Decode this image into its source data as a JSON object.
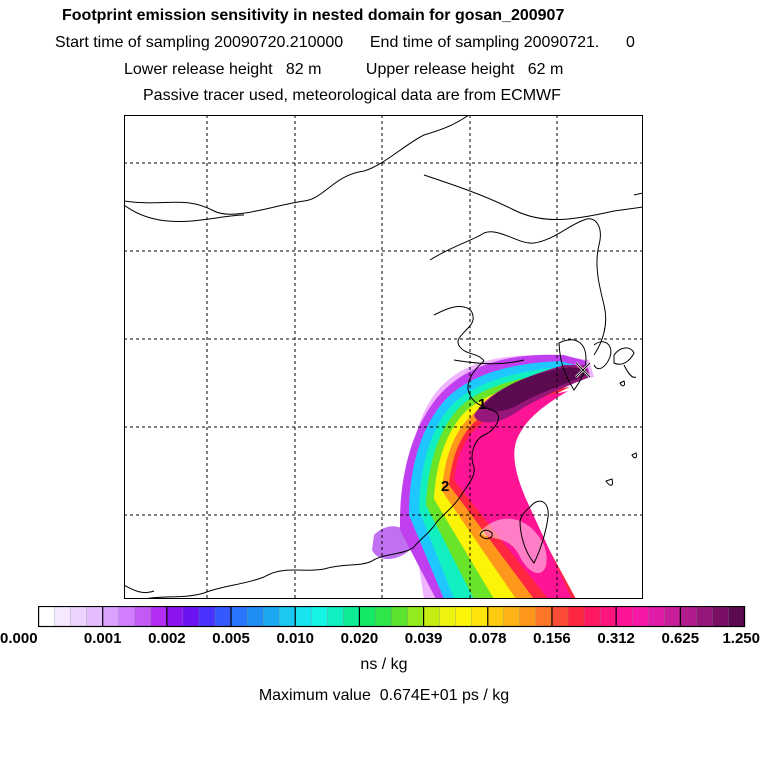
{
  "header": {
    "title": "Footprint emission sensitivity in nested domain for gosan_200907",
    "sampling_line": "Start time of sampling 20090720.210000      End time of sampling 20090721.      0",
    "release_line": "Lower release height   82 m          Upper release height   62 m",
    "tracer_line": "Passive tracer used, meteorological data are from ECMWF"
  },
  "map": {
    "markers": [
      "1",
      "2"
    ],
    "release_site_marker": "x-marker-icon"
  },
  "colorbar": {
    "tick_labels": [
      "0.000",
      "0.001",
      "0.002",
      "0.005",
      "0.010",
      "0.020",
      "0.039",
      "0.078",
      "0.156",
      "0.312",
      "0.625",
      "1.250"
    ],
    "colors": [
      "#ffffff",
      "#f6e8ff",
      "#edd3ff",
      "#e4bdff",
      "#dca2ff",
      "#d07dff",
      "#c45af5",
      "#b22ef2",
      "#8d14f0",
      "#6a14f2",
      "#4a33ff",
      "#3559ff",
      "#2b76ff",
      "#208ff5",
      "#1aa8f0",
      "#1bc8f0",
      "#18e4ef",
      "#14f5e5",
      "#10efc0",
      "#0ded95",
      "#15e866",
      "#2ee54a",
      "#5ae42e",
      "#92ea1f",
      "#c6ee12",
      "#eef312",
      "#fbf408",
      "#ffe30a",
      "#ffcb10",
      "#ffb316",
      "#ff971c",
      "#ff7528",
      "#fc4c34",
      "#ff263f",
      "#ff1860",
      "#ff157e",
      "#ff1496",
      "#f718a8",
      "#e01ca8",
      "#c81e9c",
      "#b01c8c",
      "#96167a",
      "#7a0f66",
      "#5c0a50"
    ],
    "units": "ns / kg",
    "max_value_text": "Maximum value  0.674E+01 ps / kg"
  }
}
